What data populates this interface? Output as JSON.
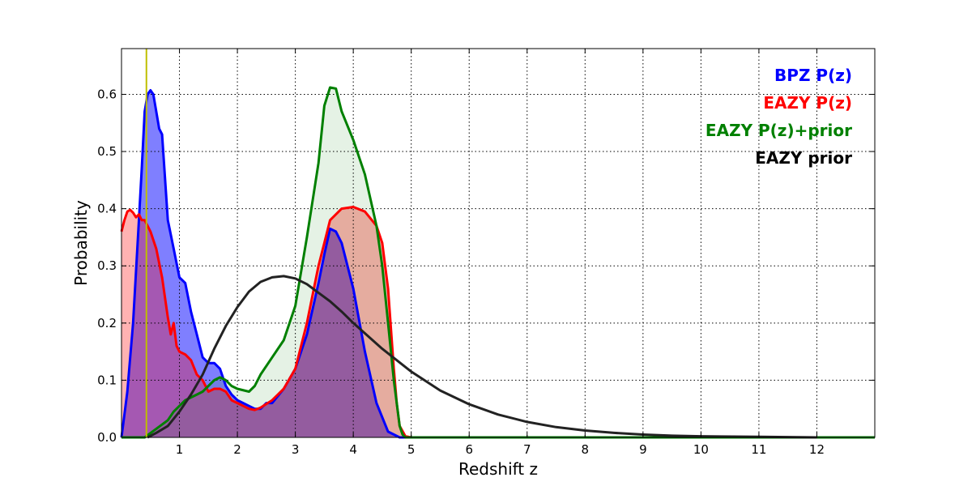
{
  "chart_data": {
    "type": "area",
    "xlabel": "Redshift z",
    "ylabel": "Probability",
    "xlim": [
      0,
      13
    ],
    "ylim": [
      0,
      0.68
    ],
    "x_ticks": [
      1,
      2,
      3,
      4,
      5,
      6,
      7,
      8,
      9,
      10,
      11,
      12
    ],
    "y_ticks": [
      0.0,
      0.1,
      0.2,
      0.3,
      0.4,
      0.5,
      0.6
    ],
    "y_tick_labels": [
      "0.0",
      "0.1",
      "0.2",
      "0.3",
      "0.4",
      "0.5",
      "0.6"
    ],
    "grid": true,
    "legend_position": "top-right",
    "reference_line": {
      "x": 0.43,
      "color": "#bfbf00"
    },
    "series": [
      {
        "name": "BPZ P(z)",
        "color": "#0000ff",
        "fill": "rgba(0,0,255,0.5)",
        "x": [
          0,
          0.1,
          0.2,
          0.3,
          0.35,
          0.4,
          0.45,
          0.5,
          0.55,
          0.6,
          0.65,
          0.7,
          0.8,
          0.9,
          1.0,
          1.1,
          1.2,
          1.3,
          1.4,
          1.5,
          1.6,
          1.7,
          1.8,
          1.9,
          2.0,
          2.1,
          2.2,
          2.3,
          2.4,
          2.5,
          2.6,
          2.8,
          3.0,
          3.2,
          3.4,
          3.5,
          3.6,
          3.7,
          3.8,
          4.0,
          4.2,
          4.4,
          4.6,
          4.8,
          5.0,
          5.5,
          13
        ],
        "values": [
          0.0,
          0.08,
          0.2,
          0.38,
          0.47,
          0.57,
          0.6,
          0.607,
          0.6,
          0.57,
          0.54,
          0.53,
          0.38,
          0.33,
          0.28,
          0.27,
          0.22,
          0.18,
          0.14,
          0.13,
          0.13,
          0.12,
          0.09,
          0.075,
          0.065,
          0.06,
          0.055,
          0.05,
          0.05,
          0.06,
          0.06,
          0.085,
          0.12,
          0.18,
          0.27,
          0.32,
          0.365,
          0.36,
          0.34,
          0.26,
          0.15,
          0.06,
          0.01,
          0.0,
          0.0,
          0.0,
          0.0
        ]
      },
      {
        "name": "EAZY P(z)",
        "color": "#ff0000",
        "fill": "rgba(255,0,0,0.3)",
        "x": [
          0,
          0.05,
          0.1,
          0.15,
          0.2,
          0.25,
          0.3,
          0.35,
          0.4,
          0.5,
          0.6,
          0.7,
          0.8,
          0.85,
          0.9,
          0.95,
          1.0,
          1.1,
          1.2,
          1.3,
          1.4,
          1.5,
          1.6,
          1.7,
          1.8,
          1.9,
          2.0,
          2.2,
          2.3,
          2.4,
          2.6,
          2.8,
          3.0,
          3.2,
          3.4,
          3.5,
          3.6,
          3.8,
          4.0,
          4.2,
          4.4,
          4.5,
          4.6,
          4.7,
          4.75,
          4.8,
          4.9,
          5.0,
          13
        ],
        "values": [
          0.36,
          0.38,
          0.395,
          0.398,
          0.393,
          0.385,
          0.39,
          0.38,
          0.38,
          0.36,
          0.33,
          0.28,
          0.21,
          0.18,
          0.2,
          0.16,
          0.15,
          0.145,
          0.135,
          0.11,
          0.1,
          0.08,
          0.085,
          0.085,
          0.08,
          0.065,
          0.06,
          0.05,
          0.048,
          0.052,
          0.065,
          0.085,
          0.12,
          0.2,
          0.3,
          0.34,
          0.38,
          0.4,
          0.403,
          0.395,
          0.37,
          0.34,
          0.26,
          0.12,
          0.06,
          0.02,
          0.002,
          0.0,
          0.0
        ]
      },
      {
        "name": "EAZY P(z)+prior",
        "color": "#008000",
        "fill": "rgba(0,128,0,0.1)",
        "x": [
          0,
          0.3,
          0.4,
          0.6,
          0.8,
          0.9,
          1.0,
          1.1,
          1.2,
          1.3,
          1.4,
          1.5,
          1.6,
          1.7,
          1.8,
          1.9,
          2.0,
          2.2,
          2.3,
          2.4,
          2.6,
          2.8,
          3.0,
          3.2,
          3.4,
          3.5,
          3.6,
          3.7,
          3.8,
          4.0,
          4.2,
          4.4,
          4.5,
          4.6,
          4.7,
          4.8,
          4.85,
          4.9,
          5.0,
          13
        ],
        "values": [
          0.0,
          0.0,
          0.0,
          0.015,
          0.03,
          0.045,
          0.055,
          0.065,
          0.07,
          0.075,
          0.08,
          0.09,
          0.1,
          0.105,
          0.1,
          0.09,
          0.085,
          0.08,
          0.09,
          0.11,
          0.14,
          0.17,
          0.23,
          0.35,
          0.48,
          0.58,
          0.612,
          0.61,
          0.57,
          0.52,
          0.46,
          0.37,
          0.3,
          0.2,
          0.1,
          0.02,
          0.005,
          0.0,
          0.0,
          0.0
        ]
      },
      {
        "name": "EAZY prior",
        "color": "#222222",
        "fill": "none",
        "x": [
          0.45,
          0.6,
          0.8,
          1.0,
          1.2,
          1.4,
          1.6,
          1.8,
          2.0,
          2.2,
          2.4,
          2.6,
          2.8,
          3.0,
          3.2,
          3.4,
          3.6,
          3.8,
          4.0,
          4.5,
          5.0,
          5.5,
          6.0,
          6.5,
          7.0,
          7.5,
          8.0,
          8.5,
          9.0,
          9.5,
          10.0,
          11.0,
          12.0
        ],
        "values": [
          0.0,
          0.008,
          0.02,
          0.045,
          0.075,
          0.11,
          0.155,
          0.195,
          0.228,
          0.255,
          0.272,
          0.28,
          0.282,
          0.278,
          0.268,
          0.253,
          0.238,
          0.22,
          0.2,
          0.155,
          0.115,
          0.082,
          0.058,
          0.04,
          0.027,
          0.018,
          0.012,
          0.008,
          0.005,
          0.003,
          0.002,
          0.001,
          0.0
        ]
      }
    ]
  }
}
